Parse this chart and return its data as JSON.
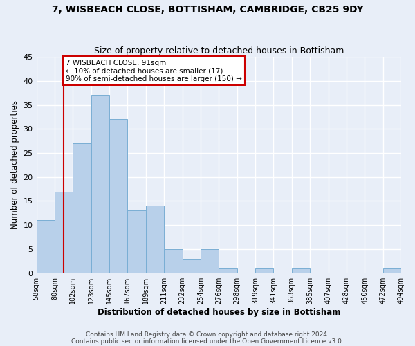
{
  "title": "7, WISBEACH CLOSE, BOTTISHAM, CAMBRIDGE, CB25 9DY",
  "subtitle": "Size of property relative to detached houses in Bottisham",
  "xlabel": "Distribution of detached houses by size in Bottisham",
  "ylabel": "Number of detached properties",
  "bin_labels": [
    "58sqm",
    "80sqm",
    "102sqm",
    "123sqm",
    "145sqm",
    "167sqm",
    "189sqm",
    "211sqm",
    "232sqm",
    "254sqm",
    "276sqm",
    "298sqm",
    "319sqm",
    "341sqm",
    "363sqm",
    "385sqm",
    "407sqm",
    "428sqm",
    "450sqm",
    "472sqm",
    "494sqm"
  ],
  "bar_values": [
    11,
    17,
    27,
    37,
    32,
    13,
    14,
    5,
    3,
    5,
    1,
    0,
    1,
    0,
    1,
    0,
    0,
    0,
    0,
    1,
    0
  ],
  "bar_color": "#b8d0ea",
  "bar_edge_color": "#7aaed4",
  "ylim": [
    0,
    45
  ],
  "yticks": [
    0,
    5,
    10,
    15,
    20,
    25,
    30,
    35,
    40,
    45
  ],
  "vline_color": "#cc0000",
  "vline_x_index": 1.5,
  "annotation_title": "7 WISBEACH CLOSE: 91sqm",
  "annotation_line1": "← 10% of detached houses are smaller (17)",
  "annotation_line2": "90% of semi-detached houses are larger (150) →",
  "annotation_box_color": "#ffffff",
  "annotation_box_edge": "#cc0000",
  "footer1": "Contains HM Land Registry data © Crown copyright and database right 2024.",
  "footer2": "Contains public sector information licensed under the Open Government Licence v3.0.",
  "background_color": "#e8eef8",
  "plot_background": "#e8eef8",
  "grid_color": "#ffffff",
  "title_fontsize": 10,
  "subtitle_fontsize": 9,
  "axis_label_fontsize": 8.5,
  "tick_fontsize": 7,
  "footer_fontsize": 6.5
}
